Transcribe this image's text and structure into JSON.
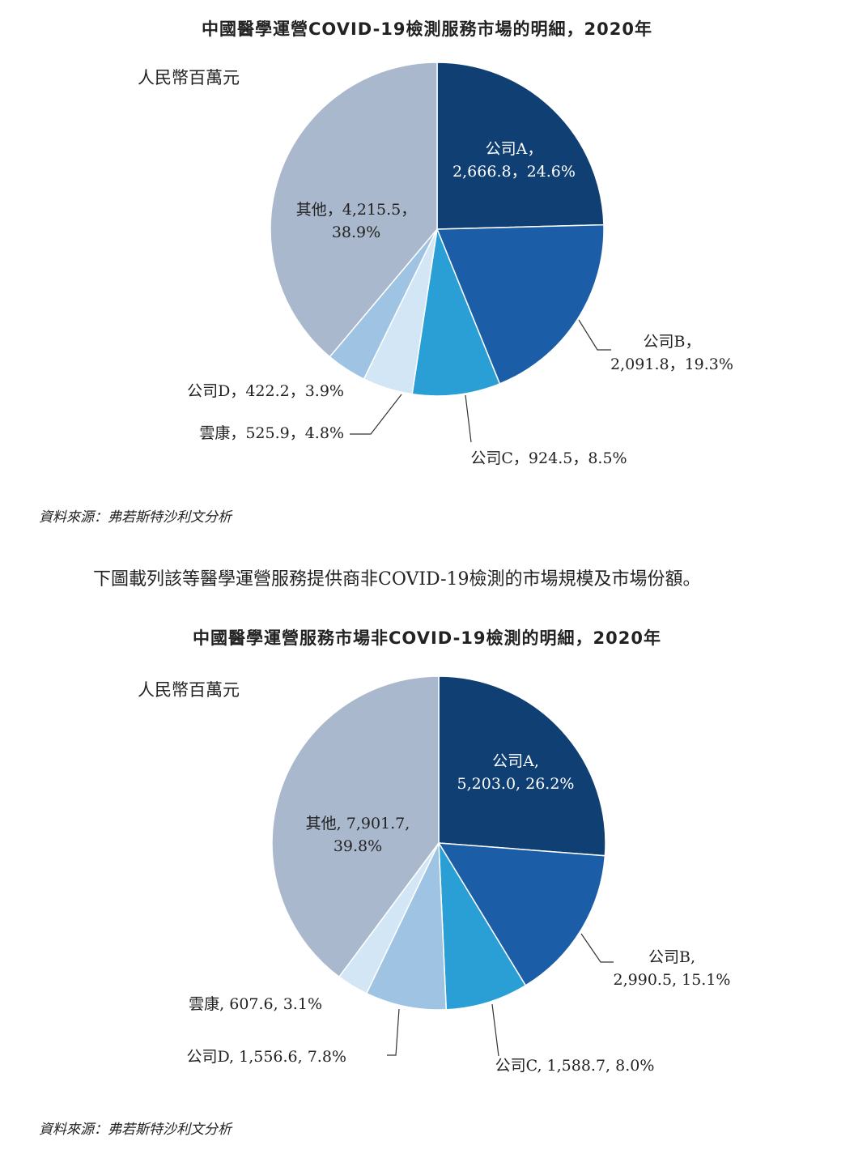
{
  "intro_text": "下圖載列該等醫學運營服務提供商非COVID-19檢測的市場規模及市場份額。",
  "colors": {
    "company_a": "#0f3f73",
    "company_b": "#1b5ea7",
    "company_c": "#2a9fd6",
    "company_d": "#9fc3e2",
    "yunkang": "#d3e6f5",
    "others": "#a9b8cc"
  },
  "chart_data": [
    {
      "type": "pie",
      "title": "中國醫學運營COVID-19檢測服務市場的明細，2020年",
      "unit_label": "人民幣百萬元",
      "source": "資料來源：弗若斯特沙利文分析",
      "slices": [
        {
          "key": "company_a",
          "name": "公司A",
          "value": 2666.8,
          "percent": 24.6,
          "label_lines": [
            "公司A，",
            "2,666.8，24.6%"
          ]
        },
        {
          "key": "company_b",
          "name": "公司B",
          "value": 2091.8,
          "percent": 19.3,
          "label_lines": [
            "公司B，",
            "2,091.8，19.3%"
          ]
        },
        {
          "key": "company_c",
          "name": "公司C",
          "value": 924.5,
          "percent": 8.5,
          "label_lines": [
            "公司C，924.5，8.5%"
          ]
        },
        {
          "key": "yunkang",
          "name": "雲康",
          "value": 525.9,
          "percent": 4.8,
          "label_lines": [
            "雲康，525.9，4.8%"
          ]
        },
        {
          "key": "company_d",
          "name": "公司D",
          "value": 422.2,
          "percent": 3.9,
          "label_lines": [
            "公司D，422.2，3.9%"
          ]
        },
        {
          "key": "others",
          "name": "其他",
          "value": 4215.5,
          "percent": 38.9,
          "label_lines": [
            "其他，4,215.5，",
            "38.9%"
          ]
        }
      ]
    },
    {
      "type": "pie",
      "title": "中國醫學運營服務市場非COVID-19檢測的明細，2020年",
      "unit_label": "人民幣百萬元",
      "source": "資料來源：弗若斯特沙利文分析",
      "slices": [
        {
          "key": "company_a",
          "name": "公司A",
          "value": 5203.0,
          "percent": 26.2,
          "label_lines": [
            "公司A,",
            "5,203.0, 26.2%"
          ]
        },
        {
          "key": "company_b",
          "name": "公司B",
          "value": 2990.5,
          "percent": 15.1,
          "label_lines": [
            "公司B,",
            "2,990.5, 15.1%"
          ]
        },
        {
          "key": "company_c",
          "name": "公司C",
          "value": 1588.7,
          "percent": 8.0,
          "label_lines": [
            "公司C, 1,588.7, 8.0%"
          ]
        },
        {
          "key": "company_d",
          "name": "公司D",
          "value": 1556.6,
          "percent": 7.8,
          "label_lines": [
            "公司D, 1,556.6, 7.8%"
          ]
        },
        {
          "key": "yunkang",
          "name": "雲康",
          "value": 607.6,
          "percent": 3.1,
          "label_lines": [
            "雲康, 607.6, 3.1%"
          ]
        },
        {
          "key": "others",
          "name": "其他",
          "value": 7901.7,
          "percent": 39.8,
          "label_lines": [
            "其他, 7,901.7,",
            "39.8%"
          ]
        }
      ]
    }
  ]
}
